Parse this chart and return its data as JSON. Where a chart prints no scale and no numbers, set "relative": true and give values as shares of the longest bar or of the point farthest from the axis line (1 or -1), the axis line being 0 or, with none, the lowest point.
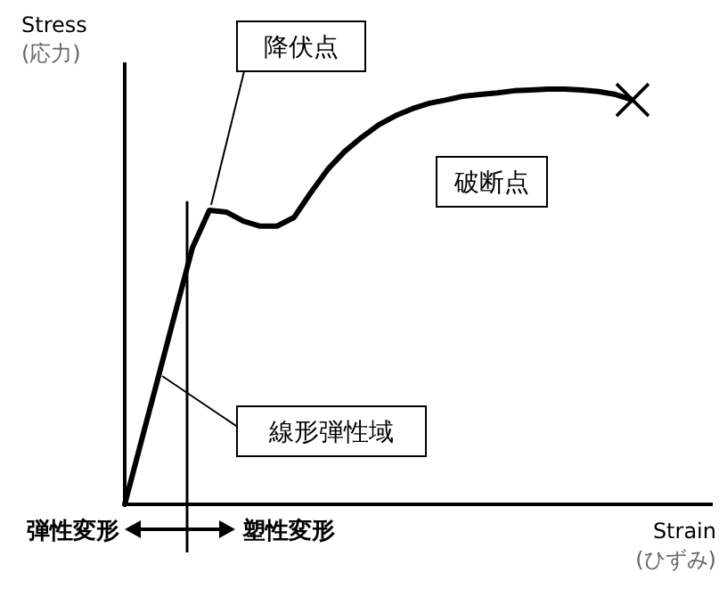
{
  "chart_data": {
    "type": "line",
    "relative": true,
    "xlabel": "Strain\n(ひずみ)",
    "ylabel": "Stress\n(応力)",
    "categories": [
      null,
      null,
      null,
      null,
      null,
      null,
      null,
      null,
      null,
      null,
      null,
      null,
      null,
      null,
      null,
      null,
      null,
      null,
      null,
      null,
      null,
      null,
      null,
      null,
      null,
      null,
      null,
      null,
      null,
      null,
      null
    ],
    "series": [
      {
        "color": "#000000",
        "line_style": "solid",
        "values": [
          0,
          0.155,
          0.309,
          0.464,
          0.618,
          0.708,
          0.704,
          0.682,
          0.67,
          0.67,
          0.691,
          0.751,
          0.807,
          0.85,
          0.884,
          0.914,
          0.936,
          0.953,
          0.966,
          0.974,
          0.983,
          0.987,
          0.991,
          0.996,
          0.998,
          1,
          1,
          0.998,
          0.994,
          0.987,
          0.974
        ]
      }
    ],
    "annotations": [
      "降伏点",
      "破断点",
      "線形弾性域",
      "弾性変形",
      "塑性変形"
    ]
  }
}
